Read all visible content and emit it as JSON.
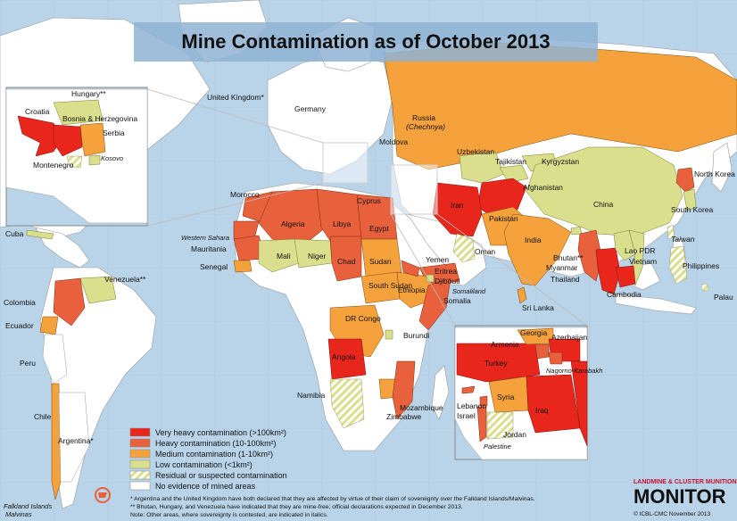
{
  "title": "Mine Contamination as of October 2013",
  "colors": {
    "ocean": "#b9d3e8",
    "land_none": "#ffffff",
    "very_heavy": "#e8261c",
    "heavy": "#e8603c",
    "medium": "#f5a23c",
    "low": "#d9df8c",
    "residual_stripe": "#d9df8c"
  },
  "legend": [
    {
      "category": "very_heavy",
      "label": "Very heavy contamination (>100km²)"
    },
    {
      "category": "heavy",
      "label": "Heavy contamination (10-100km²)"
    },
    {
      "category": "medium",
      "label": "Medium contamination (1-10km²)"
    },
    {
      "category": "low",
      "label": "Low contamination (<1km²)"
    },
    {
      "category": "residual",
      "label": "Residual or suspected contamination"
    },
    {
      "category": "none",
      "label": "No evidence of mined areas"
    }
  ],
  "labels": {
    "united_kingdom": "United Kingdom*",
    "germany": "Germany",
    "russia": "Russia",
    "chechnya": "(Chechnya)",
    "moldova": "Moldova",
    "cyprus": "Cyprus",
    "uzbekistan": "Uzbekistan",
    "tajikistan": "Tajikistan",
    "kyrgyzstan": "Kyrgyzstan",
    "afghanistan": "Afghanistan",
    "china": "China",
    "north_korea": "North Korea",
    "south_korea": "South Korea",
    "iran": "Iran",
    "pakistan": "Pakistan",
    "india": "India",
    "bhutan": "Bhutan**",
    "myanmar": "Myanmar",
    "thailand": "Thailand",
    "lao_pdr": "Lao PDR",
    "vietnam": "Vietnam",
    "cambodia": "Cambodia",
    "taiwan": "Taiwan",
    "philippines": "Philippines",
    "palau": "Palau",
    "sri_lanka": "Sri Lanka",
    "oman": "Oman",
    "yemen": "Yemen",
    "eritrea": "Eritrea",
    "djibouti": "Djibouti",
    "somaliland": "Somaliland",
    "somalia": "Somalia",
    "ethiopia": "Ethiopia",
    "south_sudan": "South Sudan",
    "sudan": "Sudan",
    "egypt": "Egypt",
    "libya": "Libya",
    "algeria": "Algeria",
    "morocco": "Morocco",
    "western_sahara": "Western Sahara",
    "mauritania": "Mauritania",
    "senegal": "Senegal",
    "mali": "Mali",
    "niger": "Niger",
    "chad": "Chad",
    "dr_congo": "DR Congo",
    "burundi": "Burundi",
    "angola": "Angola",
    "namibia": "Namibia",
    "mozambique": "Mozambique",
    "zimbabwe": "Zimbabwe",
    "cuba": "Cuba",
    "venezuela": "Venezuela**",
    "colombia": "Colombia",
    "ecuador": "Ecuador",
    "peru": "Peru",
    "chile": "Chile",
    "argentina": "Argentina*",
    "falklands": "Falkland Islands",
    "malvinas": "Malvinas"
  },
  "inset_balkans": {
    "hungary": "Hungary**",
    "croatia": "Croatia",
    "bosnia": "Bosnia & Herzegovina",
    "serbia": "Serbia",
    "kosovo": "Kosovo",
    "montenegro": "Montenegro"
  },
  "inset_middle_east": {
    "georgia": "Georgia",
    "armenia": "Armenia",
    "azerbaijan": "Azerbaijan",
    "nagorno": "Nagorno-Karabakh",
    "turkey": "Turkey",
    "syria": "Syria",
    "lebanon": "Lebanon",
    "israel": "Israel",
    "iraq": "Iraq",
    "jordan": "Jordan",
    "palestine": "Palestine"
  },
  "notes": [
    "* Argentina and the United Kingdom have both declared that they are affected by virtue of their claim of sovereignty over the Falkland Islands/Malvinas.",
    "** Bhutan, Hungary, and Venezuela have indicated that they are mine-free; official declarations expected in December 2013.",
    "Note: Other areas, where sovereignty is contested, are indicated in italics."
  ],
  "brand": {
    "line1": "LANDMINE & CLUSTER MUNITION",
    "line2": "MONITOR",
    "copyright": "© ICBL-CMC November 2013"
  }
}
